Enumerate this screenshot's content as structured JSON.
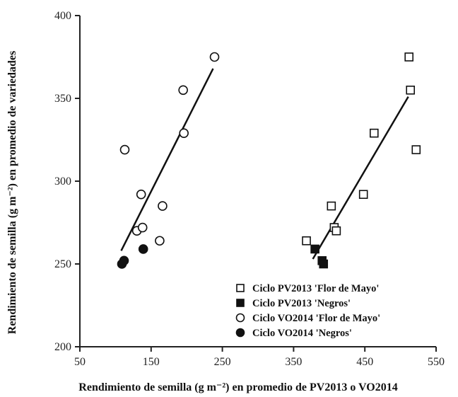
{
  "chart_data": {
    "type": "scatter",
    "xlabel": "Rendimiento de semilla (g m⁻²) en promedio de PV2013 o VO2014",
    "ylabel": "Rendimiento de semilla (g m⁻²) en promedio de variedades",
    "xlim": [
      50,
      550
    ],
    "ylim": [
      200,
      400
    ],
    "xticks": [
      50,
      150,
      250,
      350,
      450,
      550
    ],
    "yticks": [
      200,
      250,
      300,
      350,
      400
    ],
    "grid": false,
    "legend_position": "bottom-right",
    "series": [
      {
        "name": "Ciclo PV2013 'Flor de Mayo'",
        "marker": "open-square",
        "color": "#111111",
        "points": [
          [
            368,
            264
          ],
          [
            403,
            285
          ],
          [
            407,
            272
          ],
          [
            410,
            270
          ],
          [
            448,
            292
          ],
          [
            463,
            329
          ],
          [
            512,
            375
          ],
          [
            514,
            355
          ],
          [
            522,
            319
          ]
        ]
      },
      {
        "name": "Ciclo PV2013 'Negros'",
        "marker": "filled-square",
        "color": "#111111",
        "points": [
          [
            380,
            259
          ],
          [
            390,
            252
          ],
          [
            392,
            250
          ]
        ]
      },
      {
        "name": "Ciclo VO2014 'Flor de Mayo'",
        "marker": "open-circle",
        "color": "#111111",
        "points": [
          [
            113,
            319
          ],
          [
            130,
            270
          ],
          [
            136,
            292
          ],
          [
            138,
            272
          ],
          [
            162,
            264
          ],
          [
            166,
            285
          ],
          [
            195,
            355
          ],
          [
            196,
            329
          ],
          [
            239,
            375
          ]
        ]
      },
      {
        "name": "Ciclo VO2014 'Negros'",
        "marker": "filled-circle",
        "color": "#111111",
        "points": [
          [
            109,
            250
          ],
          [
            112,
            252
          ],
          [
            139,
            259
          ]
        ]
      }
    ],
    "trendlines": [
      {
        "x": [
          108,
          237
        ],
        "y": [
          258,
          368
        ]
      },
      {
        "x": [
          377,
          511
        ],
        "y": [
          253,
          351
        ]
      }
    ]
  }
}
